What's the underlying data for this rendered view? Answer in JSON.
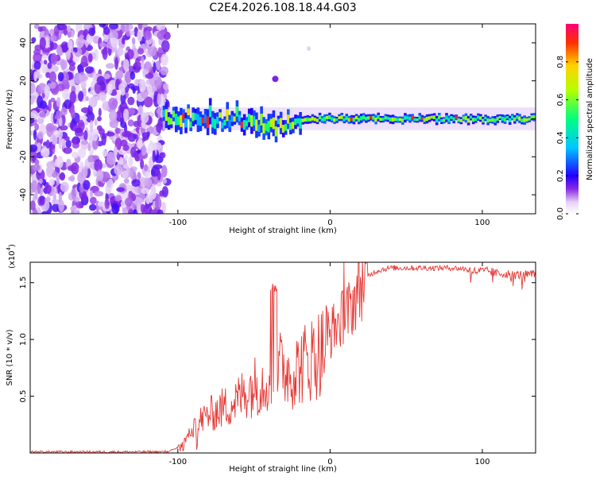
{
  "title": "C2E4.2026.108.18.44.G03",
  "colors": {
    "accent": "#e53935",
    "axis": "#000000"
  },
  "chart_data": [
    {
      "type": "heatmap",
      "title": "C2E4.2026.108.18.44.G03",
      "xlabel": "Height of straight line (km)",
      "ylabel": "Frequency (Hz)",
      "xlim": [
        -197,
        135
      ],
      "ylim": [
        -50,
        50
      ],
      "xticks": [
        -100,
        0,
        100
      ],
      "xtick_labels": [
        "-100",
        "0",
        "100"
      ],
      "yticks": [
        -40,
        -20,
        0,
        20,
        40
      ],
      "ytick_labels": [
        "-40",
        "-20",
        "0",
        "20",
        "40"
      ],
      "description_values": {
        "noise_region_x": [
          -197,
          -107
        ],
        "signal_frequency_hz": 0,
        "signal_band_start_x": -110,
        "isolated_blob": {
          "x": -36,
          "y": 21
        }
      },
      "colorbar": {
        "label": "Normalized spectral amplitude",
        "range": [
          0,
          1
        ],
        "ticks": [
          0.0,
          0.2,
          0.4,
          0.6,
          0.8
        ],
        "tick_labels": [
          "0.0",
          "0.2",
          "0.4",
          "0.6",
          "0.8"
        ]
      }
    },
    {
      "type": "line",
      "xlabel": "Height of straight line (km)",
      "ylabel": "SNR (10 * v/v)",
      "multiplier": "(x10",
      "multiplier_exp": "4",
      "multiplier_close": ")",
      "xlim": [
        -197,
        135
      ],
      "ylim": [
        0,
        1.68
      ],
      "xticks": [
        -100,
        0,
        100
      ],
      "xtick_labels": [
        "-100",
        "0",
        "100"
      ],
      "yticks": [
        0.5,
        1.0,
        1.5
      ],
      "ytick_labels": [
        "0.5",
        "1.0",
        "1.5"
      ],
      "series": [
        {
          "name": "SNR",
          "color": "#e53935",
          "x": [
            -197,
            -150,
            -110,
            -105,
            -100,
            -95,
            -90,
            -85,
            -80,
            -75,
            -70,
            -65,
            -60,
            -55,
            -50,
            -45,
            -40,
            -35,
            -30,
            -25,
            -20,
            -15,
            -10,
            -5,
            0,
            5,
            10,
            15,
            20,
            25,
            30,
            35,
            40,
            50,
            60,
            70,
            80,
            90,
            95,
            100,
            105,
            110,
            115,
            120,
            125,
            130,
            135
          ],
          "y": [
            0.01,
            0.01,
            0.01,
            0.02,
            0.05,
            0.12,
            0.22,
            0.3,
            0.35,
            0.38,
            0.42,
            0.45,
            0.5,
            0.58,
            0.62,
            0.65,
            0.72,
            0.78,
            0.78,
            0.74,
            0.8,
            0.85,
            0.9,
            0.95,
            1.05,
            1.15,
            1.2,
            1.32,
            1.48,
            1.56,
            1.6,
            1.62,
            1.63,
            1.63,
            1.63,
            1.63,
            1.63,
            1.62,
            1.6,
            1.6,
            1.6,
            1.58,
            1.58,
            1.57,
            1.57,
            1.57,
            1.57
          ]
        }
      ]
    }
  ]
}
